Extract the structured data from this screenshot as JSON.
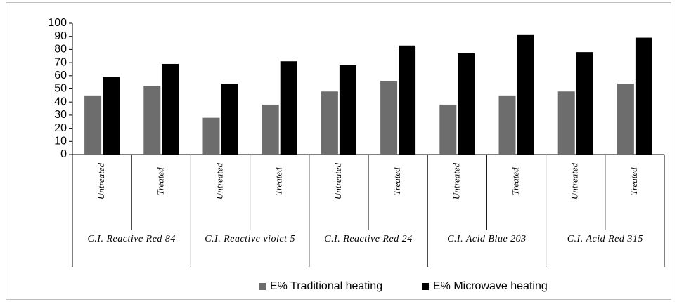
{
  "chart_data": {
    "type": "bar",
    "categories": [
      "Untreated",
      "Treated",
      "Untreated",
      "Treated",
      "Untreated",
      "Treated",
      "Untreated",
      "Treated",
      "Untreated",
      "Treated"
    ],
    "groups": [
      "C.I. Reactive Red 84",
      "C.I. Reactive violet 5",
      "C.I. Reactive Red 24",
      "C.I. Acid Blue 203",
      "C.I. Acid Red 315"
    ],
    "series": [
      {
        "name": "E% Traditional heating",
        "color": "#6d6d6d",
        "values": [
          45,
          52,
          28,
          38,
          48,
          56,
          38,
          45,
          48,
          54
        ]
      },
      {
        "name": "E% Microwave heating",
        "color": "#000000",
        "values": [
          59,
          69,
          54,
          71,
          68,
          83,
          77,
          91,
          78,
          89
        ]
      }
    ],
    "ylim": [
      0,
      100
    ],
    "yticks": [
      0,
      10,
      20,
      30,
      40,
      50,
      60,
      70,
      80,
      90,
      100
    ],
    "legend": "bottom"
  }
}
